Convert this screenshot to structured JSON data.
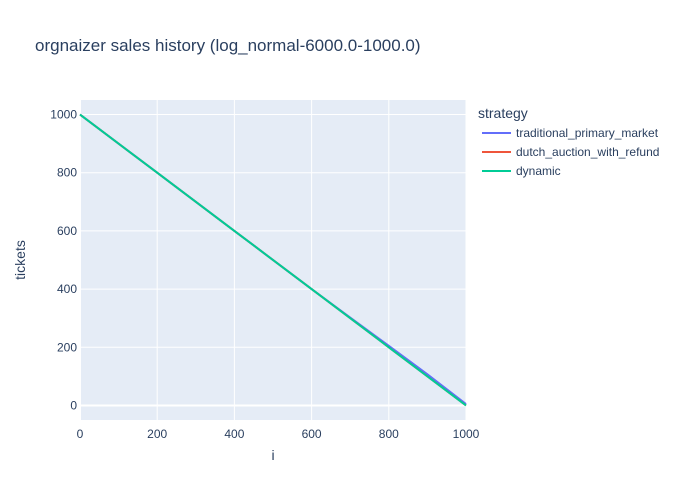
{
  "chart_data": {
    "type": "line",
    "title": "orgnaizer sales history (log_normal-6000.0-1000.0)",
    "xlabel": "i",
    "ylabel": "tickets",
    "xlim": [
      0,
      1000
    ],
    "ylim": [
      -50,
      1050
    ],
    "xticks": [
      0,
      200,
      400,
      600,
      800,
      1000
    ],
    "yticks": [
      0,
      200,
      400,
      600,
      800,
      1000
    ],
    "grid": true,
    "legend": {
      "title": "strategy",
      "placement": "right"
    },
    "series": [
      {
        "name": "traditional_primary_market",
        "color": "#636efa",
        "x": [
          0,
          200,
          400,
          600,
          700,
          800,
          900,
          1000
        ],
        "y": [
          1000,
          800,
          600,
          400,
          302,
          205,
          107,
          5
        ]
      },
      {
        "name": "dutch_auction_with_refund",
        "color": "#ef553b",
        "x": [
          0,
          200,
          400,
          600,
          800,
          1000
        ],
        "y": [
          1000,
          800,
          600,
          400,
          200,
          0
        ]
      },
      {
        "name": "dynamic",
        "color": "#00cc96",
        "x": [
          0,
          200,
          400,
          600,
          800,
          1000
        ],
        "y": [
          1000,
          800,
          600,
          400,
          200,
          0
        ]
      }
    ]
  }
}
